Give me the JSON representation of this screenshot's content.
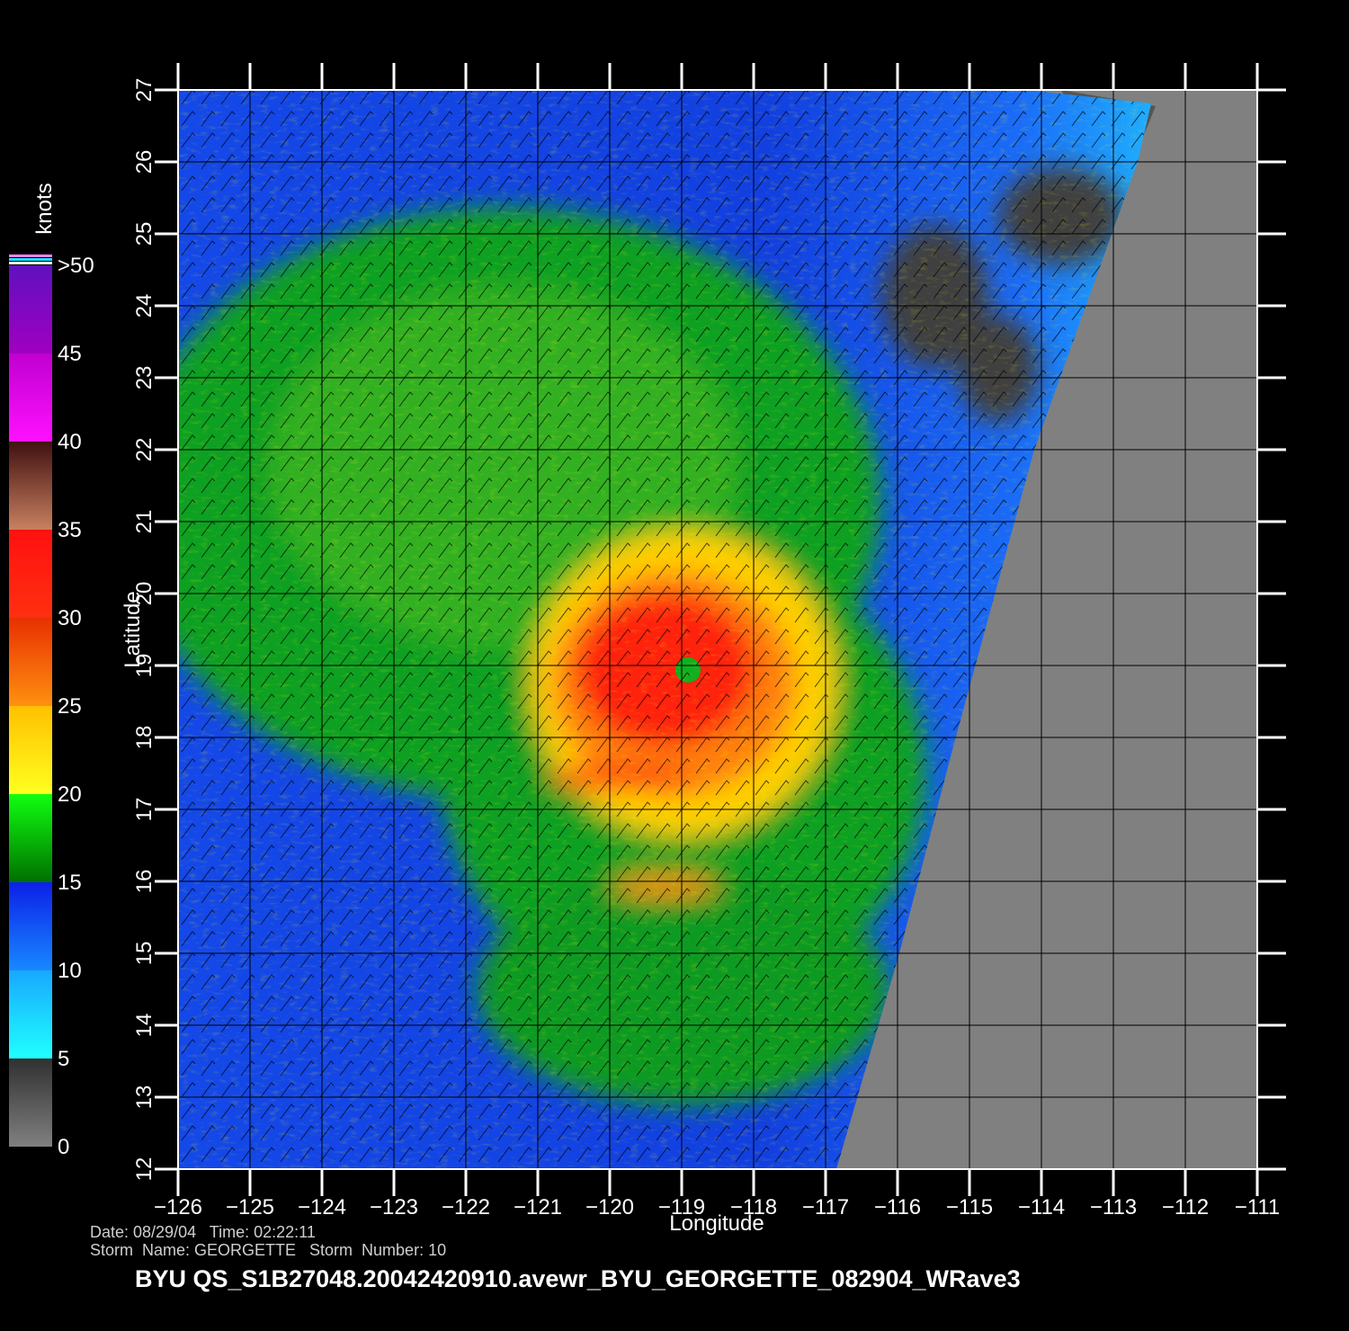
{
  "map": {
    "xlabel": "Longitude",
    "ylabel": "Latitude",
    "xlim": [
      -126,
      -111
    ],
    "ylim": [
      12,
      27
    ],
    "xticks": [
      {
        "value": -126,
        "label": "−126"
      },
      {
        "value": -125,
        "label": "−125"
      },
      {
        "value": -124,
        "label": "−124"
      },
      {
        "value": -123,
        "label": "−123"
      },
      {
        "value": -122,
        "label": "−122"
      },
      {
        "value": -121,
        "label": "−121"
      },
      {
        "value": -120,
        "label": "−120"
      },
      {
        "value": -119,
        "label": "−119"
      },
      {
        "value": -118,
        "label": "−118"
      },
      {
        "value": -117,
        "label": "−117"
      },
      {
        "value": -116,
        "label": "−116"
      },
      {
        "value": -115,
        "label": "−115"
      },
      {
        "value": -114,
        "label": "−114"
      },
      {
        "value": -113,
        "label": "−113"
      },
      {
        "value": -112,
        "label": "−112"
      },
      {
        "value": -111,
        "label": "−111"
      }
    ],
    "yticks": [
      12,
      13,
      14,
      15,
      16,
      17,
      18,
      19,
      20,
      21,
      22,
      23,
      24,
      25,
      26,
      27
    ]
  },
  "colorbar": {
    "label": "knots",
    "lim": [
      0,
      50
    ],
    "ticks": [
      0,
      5,
      10,
      15,
      20,
      25,
      30,
      35,
      40,
      45,
      {
        "value": 50,
        "label": ">50"
      }
    ]
  },
  "info": [
    "Date: 08/29/04   Time: 02:22:11",
    "Storm  Name: GEORGETTE   Storm  Number: 10"
  ],
  "title": "BYU  QS_S1B27048.20042420910.avewr_BYU_GEORGETTE_082904_WRave3"
}
